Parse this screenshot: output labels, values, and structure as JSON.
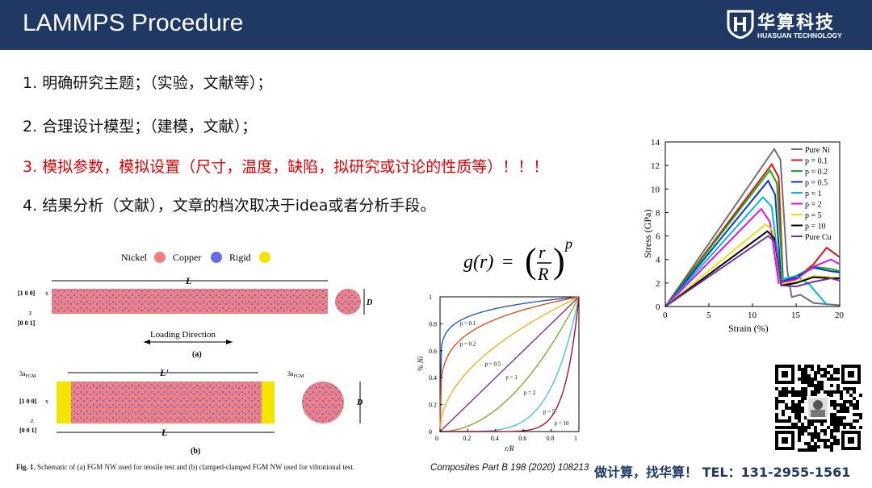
{
  "header": {
    "title": "LAMMPS Procedure",
    "logo_cn": "华算科技",
    "logo_en": "HUASUAN TECHNOLOGY",
    "bg_color": "#1f3864"
  },
  "list": [
    {
      "num": "1.",
      "text": "明确研究主题；（实验，文献等）；"
    },
    {
      "num": "2.",
      "text": "合理设计模型；（建模，文献）；"
    },
    {
      "num": "3.",
      "text": "模拟参数，模拟设置（尺寸，温度，缺陷，拟研究或讨论的性质等）！！！"
    },
    {
      "num": "4.",
      "text": "结果分析（文献），文章的档次取决于idea或者分析手段。"
    }
  ],
  "left_figure": {
    "legend": [
      "Nickel",
      "Copper",
      "Rigid"
    ],
    "legend_colors": [
      "#f08080",
      "#6a6af0",
      "#f5e400"
    ],
    "label_L": "L",
    "label_Lp": "L'",
    "label_D": "D",
    "dir_100": "[1 0 0]",
    "dir_001": "[0 0 1]",
    "axis_x": "x",
    "axis_z": "z",
    "loading": "Loading Direction",
    "panel_a": "(a)",
    "panel_b": "(b)",
    "fgm_left": "3a",
    "fgm_right": "3a",
    "fgm_sub": "FGM",
    "caption_prefix": "Fig. 1.",
    "caption_text": "Schematic of (a) FGM NW used for tensile test and (b) clamped-clamped FGM NW used for vibrational test."
  },
  "formula": {
    "lhs": "g(r)",
    "eq": "=",
    "num": "r",
    "den": "R",
    "exp": "p"
  },
  "mid_chart": {
    "ylabel": "% Ni",
    "xlabel": "r/R",
    "x_ticks": [
      "0",
      "0.2",
      "0.4",
      "0.6",
      "0.8",
      "1"
    ],
    "y_ticks": [
      "0",
      "0.2",
      "0.4",
      "0.6",
      "0.8",
      "1"
    ],
    "curves": [
      {
        "p": 0.1,
        "label": "p = 0.1",
        "color": "#1f5fbf"
      },
      {
        "p": 0.2,
        "label": "p = 0.2",
        "color": "#d95319"
      },
      {
        "p": 0.5,
        "label": "p = 0.5",
        "color": "#edb120"
      },
      {
        "p": 1,
        "label": "p = 1",
        "color": "#7e2f8e"
      },
      {
        "p": 2,
        "label": "p = 2",
        "color": "#77ac30"
      },
      {
        "p": 5,
        "label": "p = 5",
        "color": "#4dbeee"
      },
      {
        "p": 10,
        "label": "p = 10",
        "color": "#a2142f"
      }
    ]
  },
  "journal": "Composites Part B 198 (2020) 108213",
  "chart_data": {
    "type": "line",
    "xlabel": "Strain (%)",
    "ylabel": "Stress (GPa)",
    "xlim": [
      0,
      20
    ],
    "ylim": [
      0,
      14
    ],
    "x_ticks": [
      "0",
      "5",
      "10",
      "15",
      "20"
    ],
    "y_ticks": [
      "0",
      "2",
      "4",
      "6",
      "8",
      "10",
      "12",
      "14"
    ],
    "legend_position": "top-right",
    "series": [
      {
        "name": "Pure Ni",
        "color": "#707070",
        "x": [
          0,
          12.5,
          13.2,
          14,
          14.5,
          15.5,
          17,
          20
        ],
        "y": [
          0,
          13.4,
          12.5,
          3,
          0.8,
          1,
          0.3,
          0.1
        ]
      },
      {
        "name": "p = 0.1",
        "color": "#e01010",
        "x": [
          0,
          12.2,
          13,
          13.5,
          15,
          17,
          18.5,
          20
        ],
        "y": [
          0,
          12.1,
          11,
          2.2,
          2.4,
          3.6,
          5,
          4.2
        ]
      },
      {
        "name": "p = 0.2",
        "color": "#10b010",
        "x": [
          0,
          12,
          12.8,
          13.5,
          15,
          17,
          19,
          20
        ],
        "y": [
          0,
          11.6,
          10.5,
          2.2,
          2.6,
          3.4,
          3.2,
          3.0
        ]
      },
      {
        "name": "p = 0.5",
        "color": "#1030d0",
        "x": [
          0,
          11.8,
          12.6,
          13.3,
          15,
          17,
          19,
          20
        ],
        "y": [
          0,
          10.7,
          9.5,
          2.1,
          2.5,
          3.3,
          3.0,
          2.9
        ]
      },
      {
        "name": "p = 1",
        "color": "#00b8e0",
        "x": [
          0,
          11.2,
          12.2,
          13.2,
          15,
          16.5,
          18,
          18.6
        ],
        "y": [
          0,
          9.3,
          8.5,
          2.3,
          2.6,
          1.9,
          0.6,
          0.1
        ]
      },
      {
        "name": "p = 2",
        "color": "#e010e0",
        "x": [
          0,
          11,
          12,
          13,
          15,
          17,
          19,
          20
        ],
        "y": [
          0,
          8.3,
          7.2,
          2.0,
          2.3,
          3.4,
          4.0,
          3.6
        ]
      },
      {
        "name": "p = 5",
        "color": "#e8e010",
        "x": [
          0,
          11.5,
          12.4,
          13.2,
          15,
          17,
          19,
          20
        ],
        "y": [
          0,
          7.0,
          6.4,
          1.9,
          2.1,
          2.6,
          2.5,
          2.4
        ]
      },
      {
        "name": "p = 10",
        "color": "#000000",
        "x": [
          0,
          11.7,
          12.5,
          13.3,
          15,
          17,
          19,
          20
        ],
        "y": [
          0,
          6.4,
          5.8,
          1.8,
          2.0,
          2.5,
          2.4,
          2.4
        ]
      },
      {
        "name": "Pure Cu",
        "color": "#7030a0",
        "x": [
          0,
          11.8,
          12.6,
          13.3,
          15,
          17,
          19,
          20
        ],
        "y": [
          0,
          6.0,
          5.5,
          1.8,
          1.7,
          2.1,
          2.4,
          2.2
        ]
      }
    ]
  },
  "contact": "做计算，找华算！  TEL：131-2955-1561"
}
